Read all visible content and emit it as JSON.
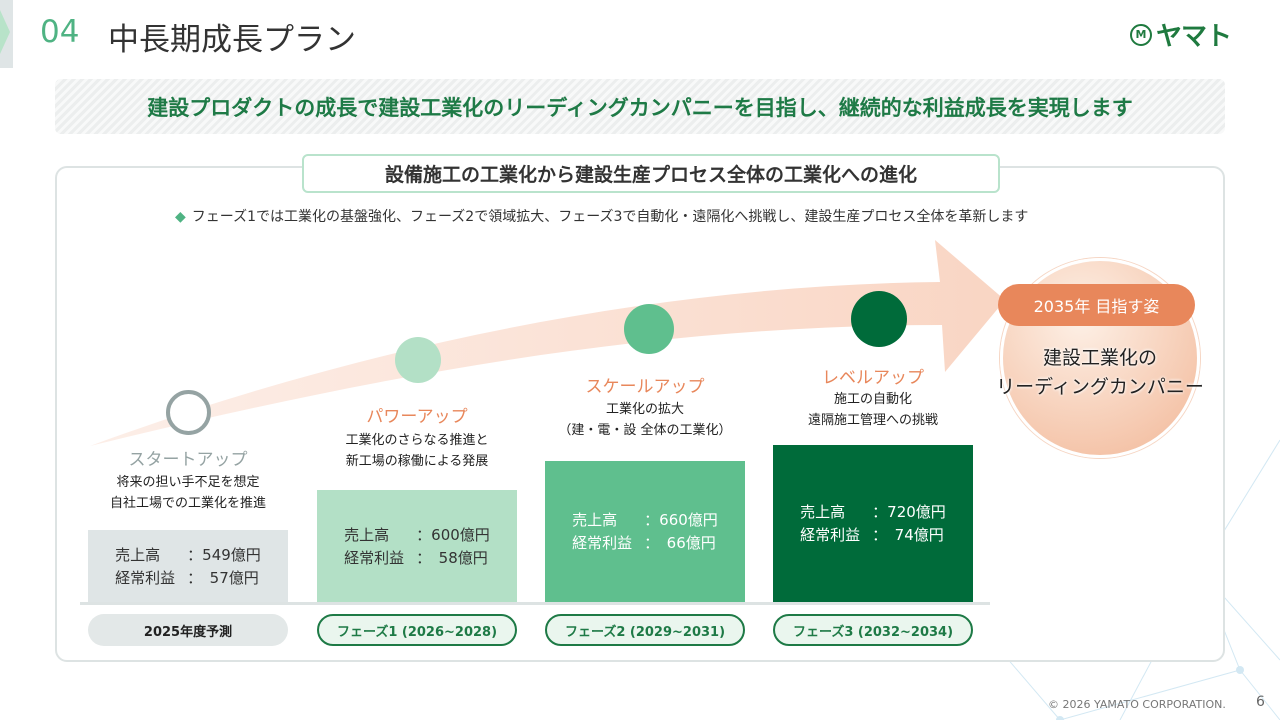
{
  "header": {
    "section_number": "04",
    "title": "中長期成長プラン",
    "logo_text": "ヤマト",
    "logo_mark": "M"
  },
  "banner": "建設プロダクトの成長で建設工業化のリーディングカンパニーを目指し、継続的な利益成長を実現します",
  "subtitle": "設備施工の工業化から建設生産プロセス全体の工業化への進化",
  "bullet": "フェーズ1では工業化の基盤強化、フェーズ2で領域拡大、フェーズ3で自動化・遠隔化へ挑戦し、建設生産プロセス全体を革新します",
  "stages": [
    {
      "name": "スタートアップ",
      "desc1": "将来の担い手不足を想定",
      "desc2": "自社工場での工業化を推進",
      "sales_label": "売上高",
      "sales": "：549億円",
      "profit_label": "経常利益",
      "profit": "：　57億円",
      "period": "2025年度予測"
    },
    {
      "name": "パワーアップ",
      "desc1": "工業化のさらなる推進と",
      "desc2": "新工場の稼働による発展",
      "sales_label": "売上高",
      "sales": "：600億円",
      "profit_label": "経常利益",
      "profit": "：　58億円",
      "period": "フェーズ1 (2026~2028)"
    },
    {
      "name": "スケールアップ",
      "desc1": "工業化の拡大",
      "desc2": "（建・電・設 全体の工業化）",
      "sales_label": "売上高",
      "sales": "：660億円",
      "profit_label": "経常利益",
      "profit": "：　66億円",
      "period": "フェーズ2 (2029~2031)"
    },
    {
      "name": "レベルアップ",
      "desc1": "施工の自動化",
      "desc2": "遠隔施工管理への挑戦",
      "sales_label": "売上高",
      "sales": "：720億円",
      "profit_label": "経常利益",
      "profit": "：　74億円",
      "period": "フェーズ3 (2032~2034)"
    }
  ],
  "goal": {
    "badge": "2035年 目指す姿",
    "line1": "建設工業化の",
    "line2": "リーディングカンパニー"
  },
  "footer": {
    "copyright": "© 2026 YAMATO CORPORATION.",
    "page": "6"
  },
  "colors": {
    "brand_green": "#1e7a46",
    "accent_orange": "#e8875b",
    "phase1": "#b3e0c6",
    "phase2": "#5fbf8e",
    "phase3": "#006b3a",
    "startup": "#dfe5e6"
  }
}
